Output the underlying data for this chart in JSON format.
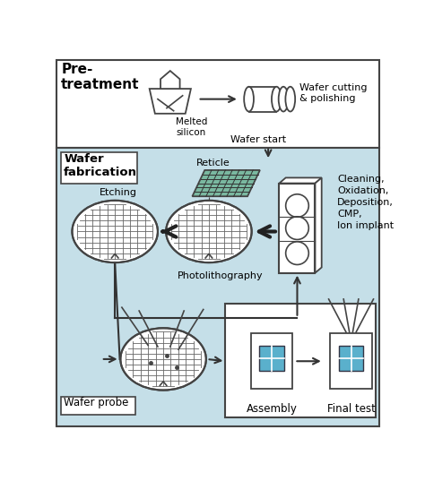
{
  "bg_white": "#ffffff",
  "bg_blue": "#c5dfe8",
  "bg_blue_inner": "#cce4ed",
  "border_color": "#444444",
  "arrow_color": "#333333",
  "grid_color": "#666666",
  "reticle_color": "#7ab8a0",
  "chip_color": "#5ab0cc",
  "label_pretreatment": "Pre-\ntreatment",
  "label_melted": "Melted\nsilicon",
  "label_wafer_cutting": "Wafer cutting\n& polishing",
  "label_wafer_fab": "Wafer\nfabrication",
  "label_wafer_start": "Wafer start",
  "label_reticle": "Reticle",
  "label_etching": "Etching",
  "label_photo": "Photolithography",
  "label_cleaning": "Cleaning,\nOxidation,\nDeposition,\nCMP,\nIon implant",
  "label_wafer_probe": "Wafer probe",
  "label_assembly": "Assembly",
  "label_final": "Final test"
}
